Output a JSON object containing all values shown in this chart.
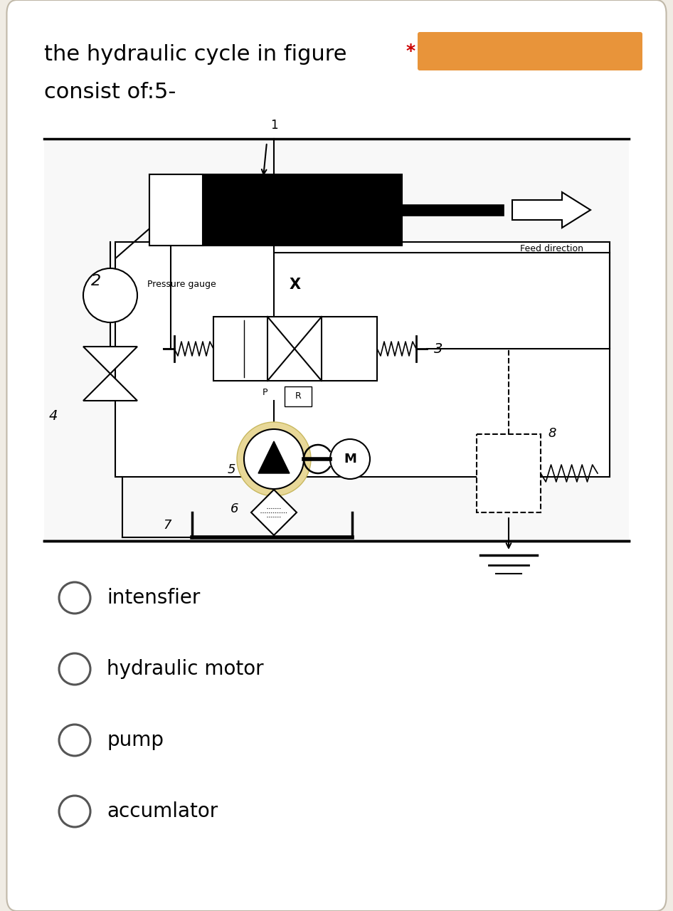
{
  "bg_color": "#f0ece4",
  "card_color": "#ffffff",
  "title_line1": "the hydraulic cycle in figure",
  "title_line2": "consist of:5-",
  "options": [
    "intensfier",
    "hydraulic motor",
    "pump",
    "accumlator"
  ],
  "option_fontsize": 20,
  "title_fontsize": 22,
  "orange_bar_color": "#E8943A",
  "star_color": "#cc0000"
}
